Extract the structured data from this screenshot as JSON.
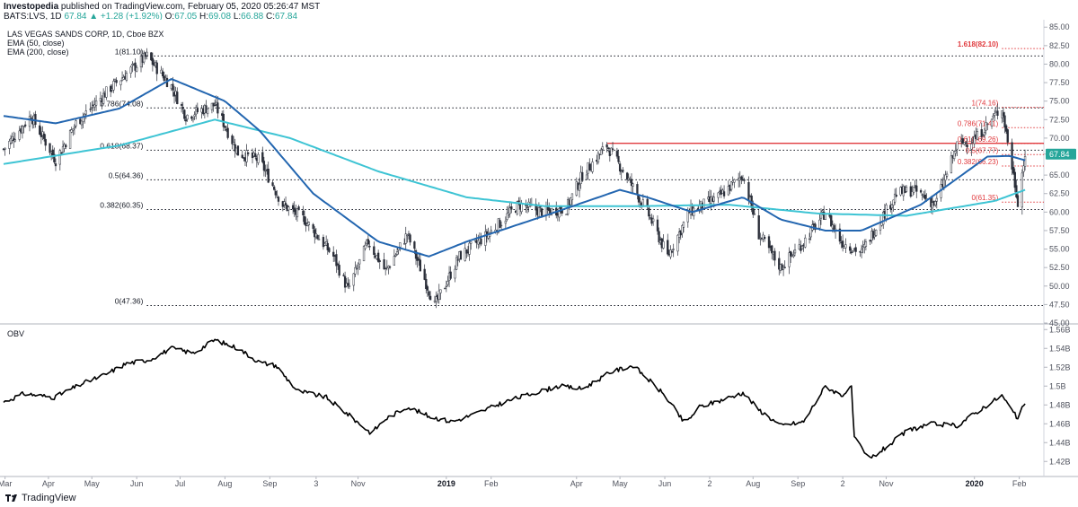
{
  "header": {
    "publisher": "Investopedia",
    "published_text": "published on TradingView.com, February 05, 2020 05:26:47 MST",
    "symbol": "BATS:LVS, 1D",
    "change": "67.84 ▲ +1.28 (+1.92%)",
    "o_label": "O:",
    "o_value": "67.05",
    "h_label": "H:",
    "h_value": "69.08",
    "l_label": "L:",
    "l_value": "66.88",
    "c_label": "C:",
    "c_value": "67.84"
  },
  "legend": {
    "title": "LAS VEGAS SANDS CORP, 1D, Cboe BZX",
    "ema50": "EMA (50, close)",
    "ema200": "EMA (200, close)",
    "obv": "OBV"
  },
  "footer": {
    "brand": "TradingView"
  },
  "colors": {
    "ema50": "#2366b0",
    "ema200": "#3ec4d4",
    "fib": "#131722",
    "fib_red": "#e03a3e",
    "resistance": "#e03a3e",
    "obv": "#000000",
    "axis_text": "#50535e"
  },
  "chart_data": [
    {
      "type": "candlestick",
      "title": "LAS VEGAS SANDS CORP, 1D, Cboe BZX",
      "y_ticks": [
        "85.00",
        "82.50",
        "80.00",
        "77.50",
        "75.00",
        "72.50",
        "70.00",
        "67.84",
        "65.00",
        "62.50",
        "60.00",
        "57.50",
        "55.00",
        "52.50",
        "50.00",
        "47.50",
        "45.00"
      ],
      "ylim": [
        45,
        86
      ],
      "x_ticks": [
        "Mar",
        "Apr",
        "May",
        "Jun",
        "Jul",
        "Aug",
        "Sep",
        "3",
        "Nov",
        "2019",
        "Feb",
        "Apr",
        "May",
        "Jun",
        "2",
        "Aug",
        "Sep",
        "2",
        "Nov",
        "2020",
        "Feb"
      ],
      "price_anchors": [
        [
          "2018-03",
          68.5
        ],
        [
          "2018-03-20",
          73
        ],
        [
          "2018-04-06",
          67
        ],
        [
          "2018-04-20",
          72
        ],
        [
          "2018-05-15",
          77
        ],
        [
          "2018-06-08",
          81.1
        ],
        [
          "2018-06-25",
          77
        ],
        [
          "2018-07-05",
          73
        ],
        [
          "2018-07-25",
          74.5
        ],
        [
          "2018-08-10",
          68
        ],
        [
          "2018-08-25",
          67
        ],
        [
          "2018-09-10",
          61
        ],
        [
          "2018-09-25",
          59
        ],
        [
          "2018-10-15",
          54
        ],
        [
          "2018-10-25",
          49.5
        ],
        [
          "2018-11-08",
          56
        ],
        [
          "2018-11-20",
          52
        ],
        [
          "2018-12-05",
          57
        ],
        [
          "2018-12-24",
          47.4
        ],
        [
          "2019-01-10",
          54
        ],
        [
          "2019-01-30",
          57
        ],
        [
          "2019-02-20",
          61
        ],
        [
          "2019-03-10",
          60
        ],
        [
          "2019-03-25",
          60.5
        ],
        [
          "2019-04-05",
          65
        ],
        [
          "2019-04-22",
          69
        ],
        [
          "2019-05-05",
          65
        ],
        [
          "2019-05-20",
          60
        ],
        [
          "2019-06-03",
          54
        ],
        [
          "2019-06-18",
          60
        ],
        [
          "2019-07-08",
          62
        ],
        [
          "2019-07-25",
          65
        ],
        [
          "2019-08-05",
          57
        ],
        [
          "2019-08-20",
          52.5
        ],
        [
          "2019-09-05",
          56
        ],
        [
          "2019-09-20",
          60
        ],
        [
          "2019-10-01",
          56
        ],
        [
          "2019-10-15",
          54.5
        ],
        [
          "2019-10-25",
          58
        ],
        [
          "2019-11-08",
          62.5
        ],
        [
          "2019-11-20",
          63
        ],
        [
          "2019-12-05",
          61
        ],
        [
          "2019-12-20",
          69
        ],
        [
          "2020-01-02",
          70
        ],
        [
          "2020-01-15",
          73
        ],
        [
          "2020-01-20",
          74.2
        ],
        [
          "2020-01-31",
          61.5
        ],
        [
          "2020-02-05",
          67.8
        ]
      ],
      "ema50_anchors": [
        [
          "2018-03",
          73
        ],
        [
          "2018-04-06",
          72
        ],
        [
          "2018-05-20",
          74
        ],
        [
          "2018-06-25",
          78
        ],
        [
          "2018-08-01",
          75
        ],
        [
          "2018-08-25",
          71
        ],
        [
          "2018-10-01",
          62.5
        ],
        [
          "2018-11-15",
          56
        ],
        [
          "2018-12-20",
          54
        ],
        [
          "2019-01-15",
          56
        ],
        [
          "2019-03-10",
          59.5
        ],
        [
          "2019-05-01",
          63
        ],
        [
          "2019-05-20",
          62
        ],
        [
          "2019-06-20",
          60
        ],
        [
          "2019-07-25",
          62
        ],
        [
          "2019-08-20",
          59
        ],
        [
          "2019-09-20",
          57.5
        ],
        [
          "2019-10-15",
          57.5
        ],
        [
          "2019-11-25",
          61
        ],
        [
          "2020-01-10",
          67.5
        ],
        [
          "2020-01-25",
          67.6
        ],
        [
          "2020-02-05",
          67.0
        ]
      ],
      "ema200_anchors": [
        [
          "2018-03",
          66.5
        ],
        [
          "2018-05-20",
          69
        ],
        [
          "2018-07-25",
          72.5
        ],
        [
          "2018-09-15",
          70
        ],
        [
          "2018-11-15",
          65.5
        ],
        [
          "2019-01-15",
          62
        ],
        [
          "2019-03-10",
          60.8
        ],
        [
          "2019-05-15",
          60.8
        ],
        [
          "2019-07-15",
          61
        ],
        [
          "2019-09-15",
          59.8
        ],
        [
          "2019-11-15",
          59.5
        ],
        [
          "2020-01-15",
          61.5
        ],
        [
          "2020-02-05",
          63
        ]
      ],
      "fib_left": [
        {
          "label": "1(81.10)",
          "value": 81.1
        },
        {
          "label": "0.786(74.08)",
          "value": 74.08
        },
        {
          "label": "0.618(68.37)",
          "value": 68.37
        },
        {
          "label": "0.5(64.36)",
          "value": 64.36
        },
        {
          "label": "0.382(60.35)",
          "value": 60.35
        },
        {
          "label": "0(47.36)",
          "value": 47.36
        }
      ],
      "fib_right": [
        {
          "label": "1.618(82.10)",
          "value": 82.1
        },
        {
          "label": "1(74.16)",
          "value": 74.16
        },
        {
          "label": "0.786(71.41)",
          "value": 71.41
        },
        {
          "label": "0.618(69.26)",
          "value": 69.26
        },
        {
          "label": "0.5(67.77)",
          "value": 67.77
        },
        {
          "label": "0.382(66.23)",
          "value": 66.23
        },
        {
          "label": "0(61.35)",
          "value": 61.35
        }
      ],
      "resistance": 69.3,
      "last_price": "67.84"
    },
    {
      "type": "line",
      "title": "OBV",
      "y_ticks": [
        "1.56B",
        "1.54B",
        "1.52B",
        "1.5B",
        "1.48B",
        "1.46B",
        "1.44B",
        "1.42B"
      ],
      "ylim": [
        1.405,
        1.565
      ],
      "obv_anchors": [
        [
          "2018-03",
          1.483
        ],
        [
          "2018-03-15",
          1.492
        ],
        [
          "2018-04-05",
          1.488
        ],
        [
          "2018-04-25",
          1.503
        ],
        [
          "2018-05-10",
          1.512
        ],
        [
          "2018-05-25",
          1.524
        ],
        [
          "2018-06-10",
          1.528
        ],
        [
          "2018-06-25",
          1.54
        ],
        [
          "2018-07-10",
          1.535
        ],
        [
          "2018-07-25",
          1.549
        ],
        [
          "2018-08-10",
          1.54
        ],
        [
          "2018-08-25",
          1.525
        ],
        [
          "2018-09-05",
          1.522
        ],
        [
          "2018-09-20",
          1.495
        ],
        [
          "2018-10-10",
          1.488
        ],
        [
          "2018-10-25",
          1.47
        ],
        [
          "2018-11-10",
          1.45
        ],
        [
          "2018-11-20",
          1.465
        ],
        [
          "2018-12-05",
          1.478
        ],
        [
          "2018-12-20",
          1.468
        ],
        [
          "2019-01-05",
          1.462
        ],
        [
          "2019-01-20",
          1.47
        ],
        [
          "2019-02-10",
          1.483
        ],
        [
          "2019-03-01",
          1.492
        ],
        [
          "2019-03-20",
          1.5
        ],
        [
          "2019-04-05",
          1.497
        ],
        [
          "2019-04-25",
          1.515
        ],
        [
          "2019-05-10",
          1.522
        ],
        [
          "2019-05-20",
          1.508
        ],
        [
          "2019-06-01",
          1.49
        ],
        [
          "2019-06-15",
          1.46
        ],
        [
          "2019-06-25",
          1.478
        ],
        [
          "2019-07-10",
          1.485
        ],
        [
          "2019-07-25",
          1.493
        ],
        [
          "2019-08-05",
          1.475
        ],
        [
          "2019-08-20",
          1.458
        ],
        [
          "2019-09-05",
          1.462
        ],
        [
          "2019-09-20",
          1.5
        ],
        [
          "2019-10-01",
          1.49
        ],
        [
          "2019-10-08",
          1.498
        ],
        [
          "2019-10-10",
          1.445
        ],
        [
          "2019-10-20",
          1.422
        ],
        [
          "2019-11-01",
          1.435
        ],
        [
          "2019-11-15",
          1.452
        ],
        [
          "2019-12-01",
          1.46
        ],
        [
          "2019-12-20",
          1.458
        ],
        [
          "2020-01-05",
          1.475
        ],
        [
          "2020-01-20",
          1.49
        ],
        [
          "2020-01-31",
          1.465
        ],
        [
          "2020-02-05",
          1.483
        ]
      ]
    }
  ]
}
